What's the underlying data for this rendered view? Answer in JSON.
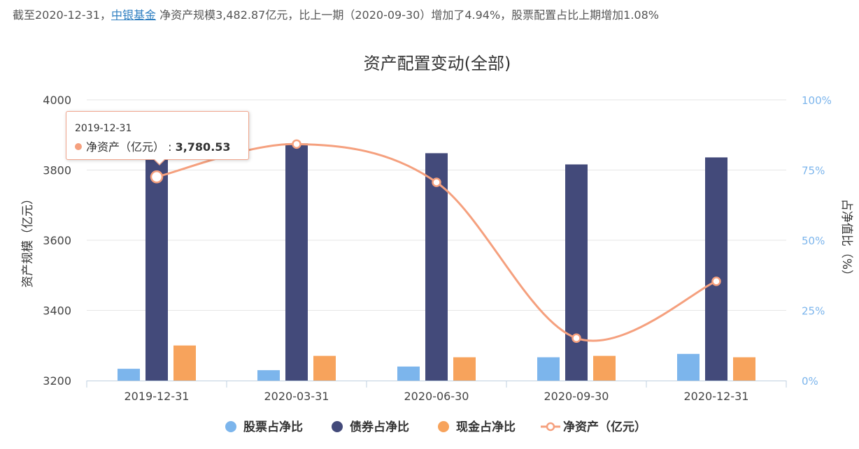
{
  "summary": {
    "prefix": "截至2020-12-31，",
    "company_link": "中银基金",
    "rest": " 净资产规模3,482.87亿元，比上一期（2020-09-30）增加了4.94%，股票配置占比上期增加1.08%"
  },
  "tooltip": {
    "date": "2019-12-31",
    "label": "净资产（亿元）",
    "value": "3,780.53"
  },
  "colors": {
    "stock": "#7cb5ec",
    "bond": "#434a7a",
    "cash": "#f7a35c",
    "net_assets": "#f5a07e",
    "right_axis": "#7cb5ec"
  },
  "chart_data": {
    "type": "bar",
    "title": "资产配置变动(全部)",
    "categories": [
      "2019-12-31",
      "2020-03-31",
      "2020-06-30",
      "2020-09-30",
      "2020-12-31"
    ],
    "ylabel_left": "资产规模（亿元）",
    "ylabel_right": "占净值比（%）",
    "ylim_left": [
      3200,
      4000
    ],
    "yticks_left": [
      "3200",
      "3400",
      "3600",
      "3800",
      "4000"
    ],
    "ylim_right": [
      0,
      100
    ],
    "yticks_right": [
      "0%",
      "25%",
      "50%",
      "75%",
      "100%"
    ],
    "grid": true,
    "legend_position": "bottom",
    "series": [
      {
        "name": "股票占净比",
        "kind": "bar",
        "axis": "right",
        "values": [
          4.2,
          3.7,
          5.0,
          8.3,
          9.5
        ]
      },
      {
        "name": "债券占净比",
        "kind": "bar",
        "axis": "right",
        "values": [
          87.0,
          84.5,
          81.0,
          77.0,
          79.5
        ]
      },
      {
        "name": "现金占净比",
        "kind": "bar",
        "axis": "right",
        "values": [
          12.5,
          8.8,
          8.3,
          8.8,
          8.3
        ]
      },
      {
        "name": "净资产（亿元）",
        "kind": "line",
        "axis": "left",
        "values": [
          3780.53,
          3874,
          3765,
          3321,
          3482.87
        ]
      }
    ]
  }
}
